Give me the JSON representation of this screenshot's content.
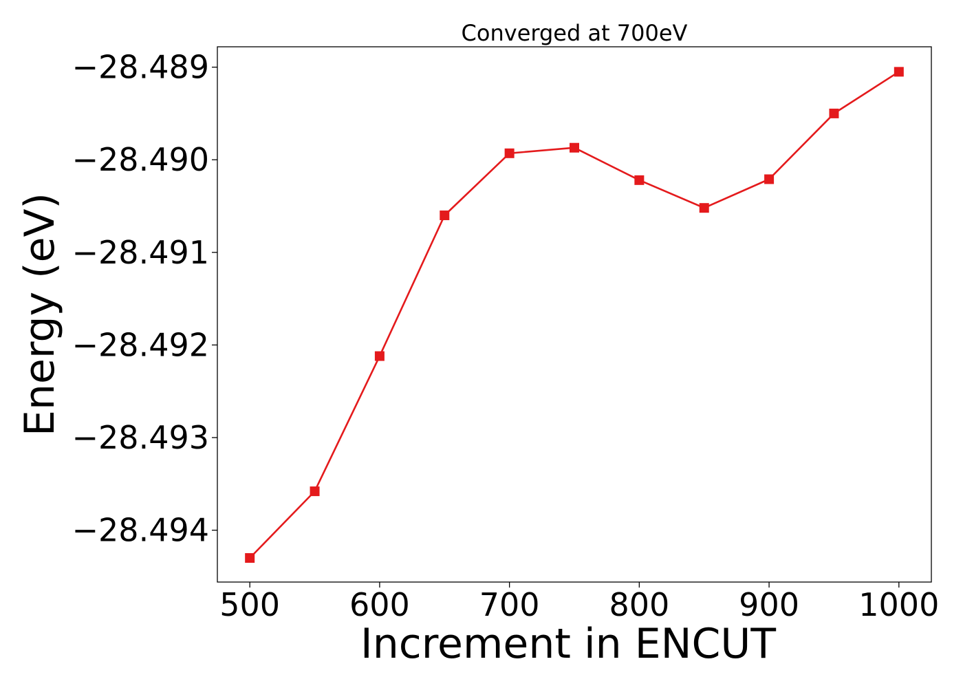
{
  "chart_data": {
    "type": "line",
    "title": "Converged at 700eV",
    "xlabel": "Increment in ENCUT",
    "ylabel": "Energy (eV)",
    "x": [
      500,
      550,
      600,
      650,
      700,
      750,
      800,
      850,
      900,
      950,
      1000
    ],
    "series": [
      {
        "values": [
          -28.4943,
          -28.49358,
          -28.49212,
          -28.4906,
          -28.48993,
          -28.48987,
          -28.49022,
          -28.49052,
          -28.49021,
          -28.4895,
          -28.48905
        ],
        "color": "#e41a1c",
        "marker": "square"
      }
    ],
    "xlim": [
      475,
      1025
    ],
    "ylim": [
      -28.49456,
      -28.48878
    ],
    "xticks": [
      500,
      600,
      700,
      800,
      900,
      1000
    ],
    "xtick_labels": [
      "500",
      "600",
      "700",
      "800",
      "900",
      "1000"
    ],
    "yticks": [
      -28.494,
      -28.493,
      -28.492,
      -28.491,
      -28.49,
      -28.489
    ],
    "ytick_labels": [
      "−28.494",
      "−28.493",
      "−28.492",
      "−28.491",
      "−28.490",
      "−28.489"
    ],
    "grid": false,
    "legend": "none"
  }
}
